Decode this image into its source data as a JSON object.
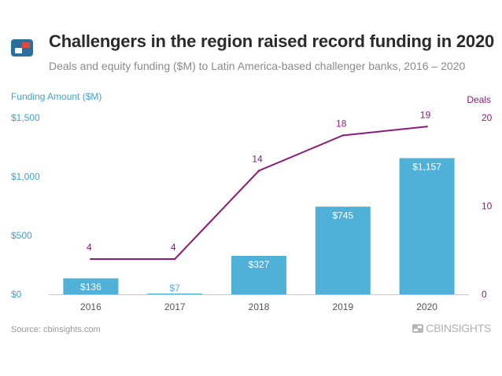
{
  "header": {
    "title": "Challengers in the region raised record funding in 2020",
    "subtitle": "Deals and equity funding ($M) to Latin America-based challenger banks, 2016 – 2020"
  },
  "footer": {
    "source": "Source: cbinsights.com",
    "brand": "CBINSIGHTS"
  },
  "colors": {
    "bar": "#4fb0d8",
    "line": "#8b1a7a",
    "axis_left": "#3ea2cf",
    "axis_right": "#8b1a7a",
    "logo_blue": "#2b6f9e",
    "logo_red": "#e0483c"
  },
  "icons": {
    "logo": "cb-insights-logo-icon",
    "brand": "cb-insights-wordmark-icon"
  },
  "chart_data": {
    "type": "bar",
    "categories": [
      "2016",
      "2017",
      "2018",
      "2019",
      "2020"
    ],
    "series": [
      {
        "type": "bar",
        "axis": "left",
        "values": [
          136,
          7,
          327,
          745,
          1157
        ],
        "labels": [
          "$136",
          "$7",
          "$327",
          "$745",
          "$1,157"
        ]
      },
      {
        "type": "line",
        "axis": "right",
        "values": [
          4,
          4,
          14,
          18,
          19
        ],
        "labels": [
          "4",
          "4",
          "14",
          "18",
          "19"
        ]
      }
    ],
    "y_left": {
      "label": "Funding Amount ($M)",
      "ylim": [
        0,
        1500
      ],
      "ticks": [
        0,
        500,
        1000,
        1500
      ],
      "tick_labels": [
        "$0",
        "$500",
        "$1,000",
        "$1,500"
      ]
    },
    "y_right": {
      "label": "Deals",
      "ylim": [
        0,
        20
      ],
      "ticks": [
        0,
        10,
        20
      ],
      "tick_labels": [
        "0",
        "10",
        "20"
      ]
    },
    "grid": false,
    "legend": "none"
  }
}
